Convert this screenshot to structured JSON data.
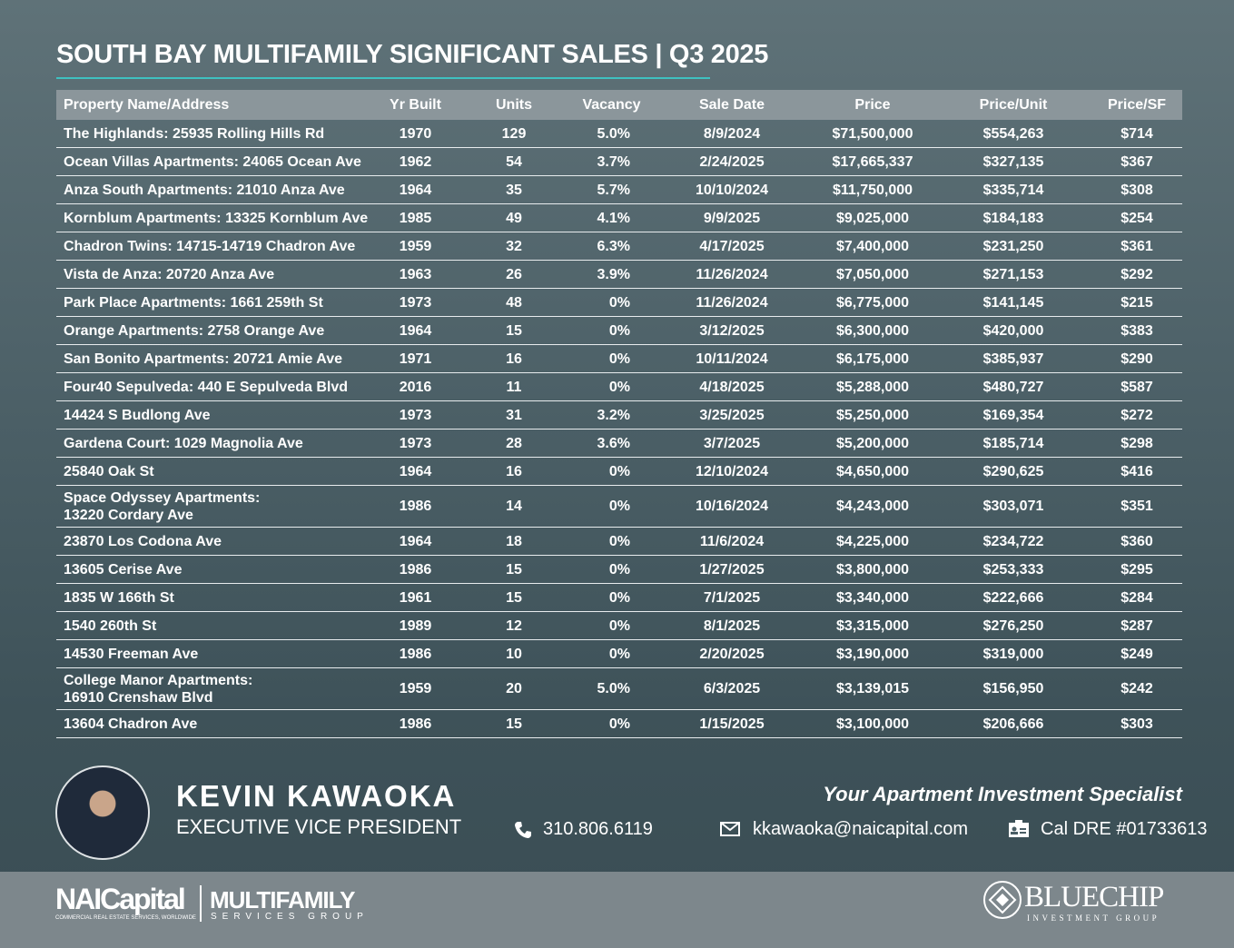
{
  "header": {
    "title": "SOUTH BAY MULTIFAMILY SIGNIFICANT SALES | Q3 2025"
  },
  "table": {
    "columns": [
      "Property Name/Address",
      "Yr Built",
      "Units",
      "Vacancy",
      "Sale Date",
      "Price",
      "Price/Unit",
      "Price/SF"
    ],
    "rows": [
      [
        "The Highlands: 25935 Rolling Hills Rd",
        "1970",
        "129",
        "5.0%",
        "8/9/2024",
        "$71,500,000",
        "$554,263",
        "$714"
      ],
      [
        "Ocean Villas Apartments: 24065 Ocean Ave",
        "1962",
        "54",
        "3.7%",
        "2/24/2025",
        "$17,665,337",
        "$327,135",
        "$367"
      ],
      [
        "Anza South Apartments: 21010 Anza Ave",
        "1964",
        "35",
        "5.7%",
        "10/10/2024",
        "$11,750,000",
        "$335,714",
        "$308"
      ],
      [
        "Kornblum Apartments: 13325 Kornblum Ave",
        "1985",
        "49",
        "4.1%",
        "9/9/2025",
        "$9,025,000",
        "$184,183",
        "$254"
      ],
      [
        "Chadron Twins: 14715-14719 Chadron Ave",
        "1959",
        "32",
        "6.3%",
        "4/17/2025",
        "$7,400,000",
        "$231,250",
        "$361"
      ],
      [
        "Vista de Anza: 20720 Anza Ave",
        "1963",
        "26",
        "3.9%",
        "11/26/2024",
        "$7,050,000",
        "$271,153",
        "$292"
      ],
      [
        "Park Place Apartments: 1661 259th St",
        "1973",
        "48",
        "0%",
        "11/26/2024",
        "$6,775,000",
        "$141,145",
        "$215"
      ],
      [
        "Orange Apartments: 2758 Orange Ave",
        "1964",
        "15",
        "0%",
        "3/12/2025",
        "$6,300,000",
        "$420,000",
        "$383"
      ],
      [
        "San Bonito Apartments: 20721 Amie Ave",
        "1971",
        "16",
        "0%",
        "10/11/2024",
        "$6,175,000",
        "$385,937",
        "$290"
      ],
      [
        "Four40 Sepulveda: 440 E Sepulveda Blvd",
        "2016",
        "11",
        "0%",
        "4/18/2025",
        "$5,288,000",
        "$480,727",
        "$587"
      ],
      [
        "14424 S Budlong Ave",
        "1973",
        "31",
        "3.2%",
        "3/25/2025",
        "$5,250,000",
        "$169,354",
        "$272"
      ],
      [
        "Gardena Court: 1029 Magnolia Ave",
        "1973",
        "28",
        "3.6%",
        "3/7/2025",
        "$5,200,000",
        "$185,714",
        "$298"
      ],
      [
        "25840 Oak St",
        "1964",
        "16",
        "0%",
        "12/10/2024",
        "$4,650,000",
        "$290,625",
        "$416"
      ],
      [
        "Space Odyssey Apartments:\n13220 Cordary Ave",
        "1986",
        "14",
        "0%",
        "10/16/2024",
        "$4,243,000",
        "$303,071",
        "$351"
      ],
      [
        "23870 Los Codona Ave",
        "1964",
        "18",
        "0%",
        "11/6/2024",
        "$4,225,000",
        "$234,722",
        "$360"
      ],
      [
        "13605 Cerise Ave",
        "1986",
        "15",
        "0%",
        "1/27/2025",
        "$3,800,000",
        "$253,333",
        "$295"
      ],
      [
        "1835 W 166th St",
        "1961",
        "15",
        "0%",
        "7/1/2025",
        "$3,340,000",
        "$222,666",
        "$284"
      ],
      [
        "1540 260th St",
        "1989",
        "12",
        "0%",
        "8/1/2025",
        "$3,315,000",
        "$276,250",
        "$287"
      ],
      [
        "14530 Freeman Ave",
        "1986",
        "10",
        "0%",
        "2/20/2025",
        "$3,190,000",
        "$319,000",
        "$249"
      ],
      [
        "College Manor Apartments:\n16910 Crenshaw Blvd",
        "1959",
        "20",
        "5.0%",
        "6/3/2025",
        "$3,139,015",
        "$156,950",
        "$242"
      ],
      [
        "13604 Chadron Ave",
        "1986",
        "15",
        "0%",
        "1/15/2025",
        "$3,100,000",
        "$206,666",
        "$303"
      ]
    ]
  },
  "contact": {
    "name": "KEVIN KAWAOKA",
    "position": "EXECUTIVE VICE PRESIDENT",
    "tagline": "Your Apartment Investment Specialist",
    "phone": "310.806.6119",
    "email": "kkawaoka@naicapital.com",
    "license": "Cal DRE #01733613"
  },
  "footer": {
    "nai_logo": "NAICapital",
    "nai_tagline": "COMMERCIAL REAL ESTATE SERVICES, WORLDWIDE",
    "group_name": "MULTIFAMILY",
    "group_sub": "SERVICES GROUP",
    "partner_logo": "BLUECHIP",
    "partner_sub": "INVESTMENT GROUP"
  }
}
